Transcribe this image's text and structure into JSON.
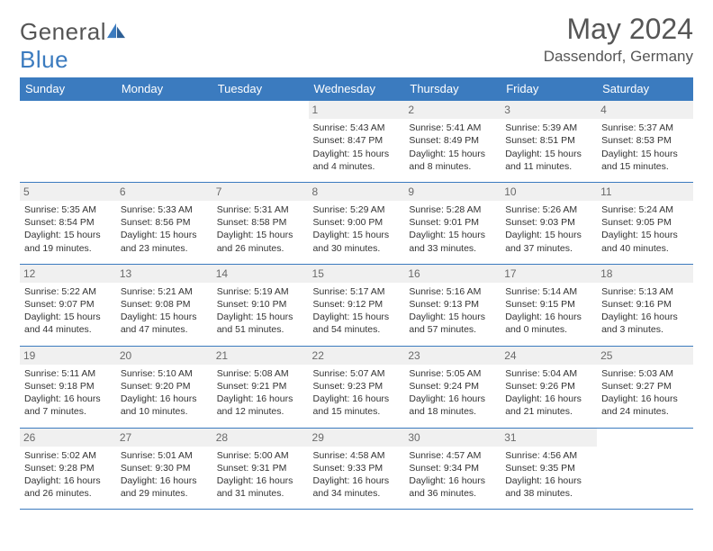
{
  "brand": {
    "name_part1": "General",
    "name_part2": "Blue",
    "text_color": "#555555",
    "blue_color": "#3b7bbf"
  },
  "header": {
    "month_title": "May 2024",
    "location": "Dassendorf, Germany"
  },
  "calendar": {
    "header_bg": "#3b7bbf",
    "header_fg": "#ffffff",
    "border_color": "#3b7bbf",
    "daynum_bg": "#f0f0f0",
    "weekdays": [
      "Sunday",
      "Monday",
      "Tuesday",
      "Wednesday",
      "Thursday",
      "Friday",
      "Saturday"
    ],
    "weeks": [
      [
        null,
        null,
        null,
        {
          "d": "1",
          "sr": "5:43 AM",
          "ss": "8:47 PM",
          "dl": "15 hours and 4 minutes."
        },
        {
          "d": "2",
          "sr": "5:41 AM",
          "ss": "8:49 PM",
          "dl": "15 hours and 8 minutes."
        },
        {
          "d": "3",
          "sr": "5:39 AM",
          "ss": "8:51 PM",
          "dl": "15 hours and 11 minutes."
        },
        {
          "d": "4",
          "sr": "5:37 AM",
          "ss": "8:53 PM",
          "dl": "15 hours and 15 minutes."
        }
      ],
      [
        {
          "d": "5",
          "sr": "5:35 AM",
          "ss": "8:54 PM",
          "dl": "15 hours and 19 minutes."
        },
        {
          "d": "6",
          "sr": "5:33 AM",
          "ss": "8:56 PM",
          "dl": "15 hours and 23 minutes."
        },
        {
          "d": "7",
          "sr": "5:31 AM",
          "ss": "8:58 PM",
          "dl": "15 hours and 26 minutes."
        },
        {
          "d": "8",
          "sr": "5:29 AM",
          "ss": "9:00 PM",
          "dl": "15 hours and 30 minutes."
        },
        {
          "d": "9",
          "sr": "5:28 AM",
          "ss": "9:01 PM",
          "dl": "15 hours and 33 minutes."
        },
        {
          "d": "10",
          "sr": "5:26 AM",
          "ss": "9:03 PM",
          "dl": "15 hours and 37 minutes."
        },
        {
          "d": "11",
          "sr": "5:24 AM",
          "ss": "9:05 PM",
          "dl": "15 hours and 40 minutes."
        }
      ],
      [
        {
          "d": "12",
          "sr": "5:22 AM",
          "ss": "9:07 PM",
          "dl": "15 hours and 44 minutes."
        },
        {
          "d": "13",
          "sr": "5:21 AM",
          "ss": "9:08 PM",
          "dl": "15 hours and 47 minutes."
        },
        {
          "d": "14",
          "sr": "5:19 AM",
          "ss": "9:10 PM",
          "dl": "15 hours and 51 minutes."
        },
        {
          "d": "15",
          "sr": "5:17 AM",
          "ss": "9:12 PM",
          "dl": "15 hours and 54 minutes."
        },
        {
          "d": "16",
          "sr": "5:16 AM",
          "ss": "9:13 PM",
          "dl": "15 hours and 57 minutes."
        },
        {
          "d": "17",
          "sr": "5:14 AM",
          "ss": "9:15 PM",
          "dl": "16 hours and 0 minutes."
        },
        {
          "d": "18",
          "sr": "5:13 AM",
          "ss": "9:16 PM",
          "dl": "16 hours and 3 minutes."
        }
      ],
      [
        {
          "d": "19",
          "sr": "5:11 AM",
          "ss": "9:18 PM",
          "dl": "16 hours and 7 minutes."
        },
        {
          "d": "20",
          "sr": "5:10 AM",
          "ss": "9:20 PM",
          "dl": "16 hours and 10 minutes."
        },
        {
          "d": "21",
          "sr": "5:08 AM",
          "ss": "9:21 PM",
          "dl": "16 hours and 12 minutes."
        },
        {
          "d": "22",
          "sr": "5:07 AM",
          "ss": "9:23 PM",
          "dl": "16 hours and 15 minutes."
        },
        {
          "d": "23",
          "sr": "5:05 AM",
          "ss": "9:24 PM",
          "dl": "16 hours and 18 minutes."
        },
        {
          "d": "24",
          "sr": "5:04 AM",
          "ss": "9:26 PM",
          "dl": "16 hours and 21 minutes."
        },
        {
          "d": "25",
          "sr": "5:03 AM",
          "ss": "9:27 PM",
          "dl": "16 hours and 24 minutes."
        }
      ],
      [
        {
          "d": "26",
          "sr": "5:02 AM",
          "ss": "9:28 PM",
          "dl": "16 hours and 26 minutes."
        },
        {
          "d": "27",
          "sr": "5:01 AM",
          "ss": "9:30 PM",
          "dl": "16 hours and 29 minutes."
        },
        {
          "d": "28",
          "sr": "5:00 AM",
          "ss": "9:31 PM",
          "dl": "16 hours and 31 minutes."
        },
        {
          "d": "29",
          "sr": "4:58 AM",
          "ss": "9:33 PM",
          "dl": "16 hours and 34 minutes."
        },
        {
          "d": "30",
          "sr": "4:57 AM",
          "ss": "9:34 PM",
          "dl": "16 hours and 36 minutes."
        },
        {
          "d": "31",
          "sr": "4:56 AM",
          "ss": "9:35 PM",
          "dl": "16 hours and 38 minutes."
        },
        null
      ]
    ],
    "labels": {
      "sunrise": "Sunrise:",
      "sunset": "Sunset:",
      "daylight": "Daylight:"
    }
  }
}
